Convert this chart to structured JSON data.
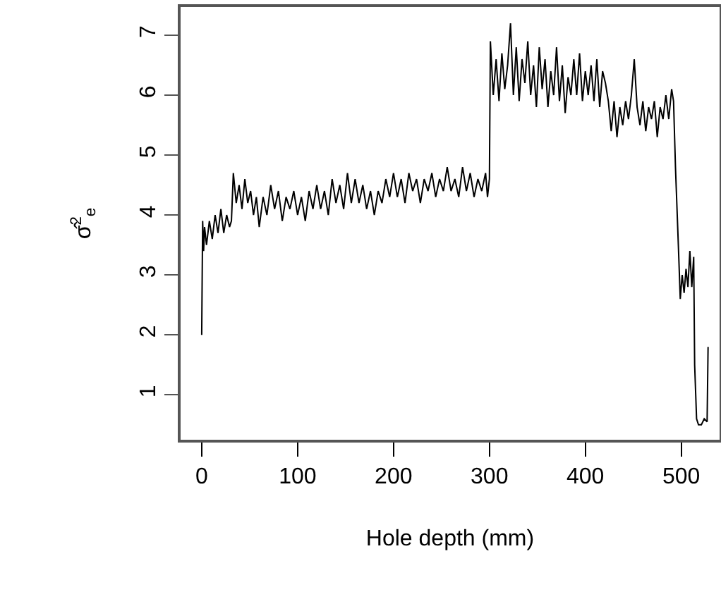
{
  "chart_data": {
    "type": "line",
    "xlabel": "Hole depth (mm)",
    "ylabel": "σ̂$^{2}$$_{e}$",
    "x": [
      0,
      1,
      2,
      3,
      5,
      8,
      11,
      14,
      17,
      20,
      23,
      26,
      29,
      31,
      33,
      36,
      39,
      42,
      45,
      48,
      51,
      54,
      57,
      60,
      64,
      68,
      72,
      76,
      80,
      84,
      88,
      92,
      96,
      100,
      104,
      108,
      112,
      116,
      120,
      124,
      128,
      132,
      136,
      140,
      144,
      148,
      152,
      156,
      160,
      164,
      168,
      172,
      176,
      180,
      184,
      188,
      192,
      196,
      200,
      204,
      208,
      212,
      216,
      220,
      224,
      228,
      232,
      236,
      240,
      244,
      248,
      252,
      256,
      260,
      264,
      268,
      272,
      276,
      280,
      284,
      288,
      292,
      296,
      298,
      300,
      301,
      304,
      307,
      310,
      313,
      316,
      319,
      322,
      325,
      328,
      331,
      334,
      337,
      340,
      343,
      346,
      349,
      352,
      355,
      358,
      361,
      364,
      367,
      370,
      373,
      376,
      379,
      382,
      385,
      388,
      391,
      394,
      397,
      400,
      403,
      406,
      409,
      412,
      415,
      418,
      421,
      424,
      427,
      430,
      433,
      436,
      439,
      442,
      445,
      448,
      451,
      454,
      457,
      460,
      463,
      466,
      469,
      472,
      475,
      478,
      481,
      484,
      487,
      490,
      492,
      494,
      497,
      499,
      501,
      503,
      505,
      507,
      509,
      511,
      513,
      514,
      516,
      518,
      521,
      524,
      527,
      528
    ],
    "series": [
      {
        "color": "#000000",
        "values": [
          2.0,
          3.9,
          3.4,
          3.8,
          3.5,
          3.9,
          3.6,
          4.0,
          3.7,
          4.1,
          3.7,
          4.0,
          3.8,
          3.9,
          4.7,
          4.2,
          4.5,
          4.1,
          4.6,
          4.2,
          4.4,
          4.0,
          4.3,
          3.8,
          4.3,
          4.0,
          4.5,
          4.1,
          4.4,
          3.9,
          4.3,
          4.1,
          4.4,
          4.0,
          4.3,
          3.9,
          4.4,
          4.1,
          4.5,
          4.1,
          4.4,
          4.0,
          4.6,
          4.2,
          4.5,
          4.1,
          4.7,
          4.2,
          4.6,
          4.2,
          4.5,
          4.1,
          4.4,
          4.0,
          4.4,
          4.2,
          4.6,
          4.3,
          4.7,
          4.3,
          4.6,
          4.2,
          4.7,
          4.4,
          4.6,
          4.2,
          4.6,
          4.4,
          4.7,
          4.3,
          4.6,
          4.4,
          4.8,
          4.4,
          4.6,
          4.3,
          4.8,
          4.4,
          4.7,
          4.3,
          4.6,
          4.4,
          4.7,
          4.3,
          4.6,
          6.9,
          6.0,
          6.6,
          5.9,
          6.7,
          6.1,
          6.5,
          7.2,
          6.0,
          6.8,
          5.9,
          6.6,
          6.2,
          6.9,
          6.0,
          6.5,
          5.8,
          6.8,
          6.1,
          6.6,
          5.8,
          6.4,
          6.0,
          6.8,
          5.9,
          6.5,
          5.7,
          6.3,
          6.0,
          6.6,
          6.0,
          6.7,
          5.9,
          6.4,
          6.0,
          6.5,
          5.9,
          6.6,
          5.8,
          6.4,
          6.2,
          5.9,
          5.4,
          5.9,
          5.3,
          5.8,
          5.5,
          5.9,
          5.6,
          6.0,
          6.6,
          5.8,
          5.5,
          5.9,
          5.4,
          5.8,
          5.6,
          5.9,
          5.3,
          5.8,
          5.6,
          6.0,
          5.6,
          6.1,
          5.9,
          4.8,
          3.5,
          2.6,
          3.0,
          2.7,
          3.1,
          2.8,
          3.4,
          2.8,
          3.3,
          1.5,
          0.6,
          0.5,
          0.5,
          0.6,
          0.55,
          1.8
        ]
      }
    ],
    "xlim": [
      -22,
      540
    ],
    "ylim": [
      0.25,
      7.47
    ],
    "xticks": [
      0,
      100,
      200,
      300,
      400,
      500
    ],
    "yticks": [
      1,
      2,
      3,
      4,
      5,
      6,
      7
    ],
    "grid": false,
    "marker": "none",
    "line_style": "solid"
  }
}
